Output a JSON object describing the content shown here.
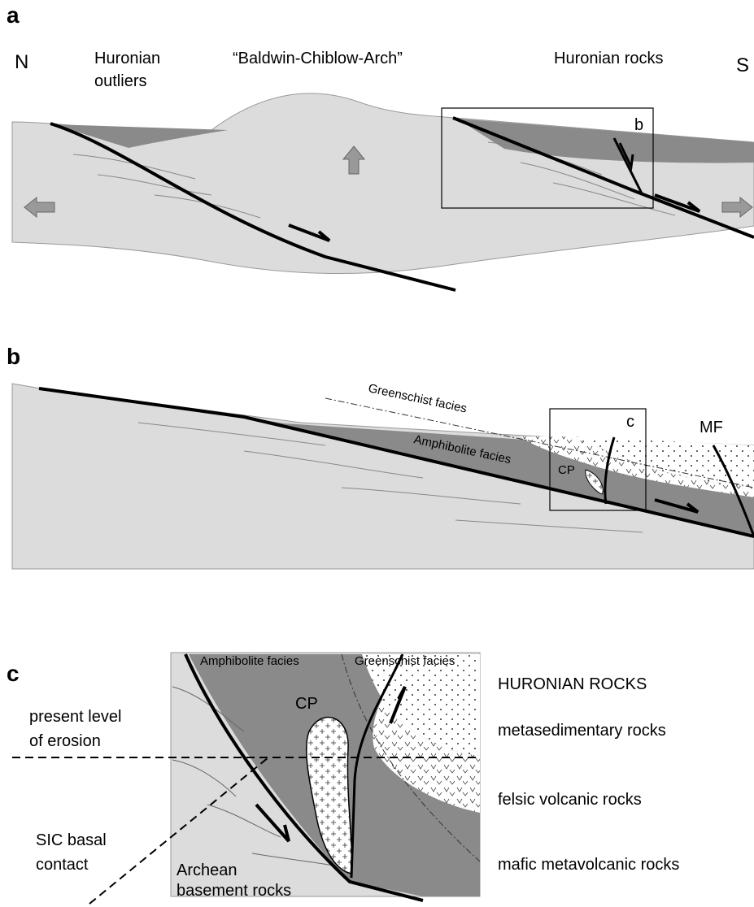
{
  "panel_a": {
    "label": "a",
    "north": "N",
    "south": "S",
    "left_label": [
      "Huronian",
      "outliers"
    ],
    "center_label": "“Baldwin-Chiblow-Arch”",
    "right_label": "Huronian rocks",
    "box_label": "b"
  },
  "panel_b": {
    "label": "b",
    "greenschist": "Greenschist facies",
    "amphibolite": "Amphibolite facies",
    "pluton": "CP",
    "box_label": "c",
    "fault": "MF"
  },
  "panel_c": {
    "label": "c",
    "amphibolite": "Amphibolite facies",
    "greenschist": "Greenschist facies",
    "erosion": [
      "present level",
      "of erosion"
    ],
    "pluton": "CP",
    "sic": [
      "SIC basal",
      "contact"
    ],
    "basement": [
      "Archean",
      "basement rocks"
    ],
    "legend": {
      "title": "HURONIAN ROCKS",
      "items": [
        "metasedimentary rocks",
        "felsic volcanic rocks",
        "mafic metavolcanic rocks"
      ]
    }
  }
}
